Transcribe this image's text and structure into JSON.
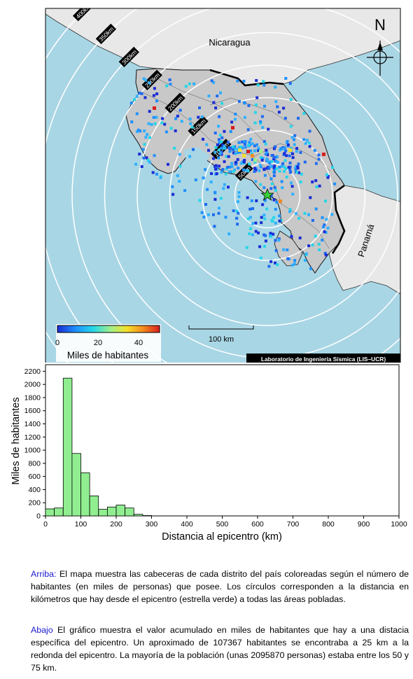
{
  "map": {
    "country_labels": {
      "north": "Nicaragua",
      "south": "Panamá"
    },
    "north_arrow": "N",
    "ring_labels": [
      "50km",
      "100km",
      "150km",
      "200km",
      "250km",
      "300km",
      "350km",
      "400km"
    ],
    "colorbar": {
      "ticks": [
        "0",
        "20",
        "40"
      ],
      "label": "Miles de habitantes",
      "colors": [
        "#1a2cd6",
        "#1e90ff",
        "#25d6e8",
        "#9ff08a",
        "#f4e02a",
        "#f28a1e",
        "#d61e1e"
      ]
    },
    "scale_bar": "100 km",
    "credit": "Laboratorio de Ingeniería Sísmica (LIS–UCR)",
    "colors": {
      "ocean": "#a9d6e5",
      "land_cr": "#c8c8c8",
      "land_other": "#e8e8e8",
      "epicenter": "#39d239"
    }
  },
  "chart_data": {
    "type": "bar",
    "xlabel": "Distancia al epicentro (km)",
    "ylabel": "Miles de habitantes",
    "xlim": [
      0,
      1000
    ],
    "ylim": [
      0,
      2300
    ],
    "xticks": [
      0,
      100,
      200,
      300,
      400,
      500,
      600,
      700,
      800,
      900,
      1000
    ],
    "yticks": [
      0,
      200,
      400,
      600,
      800,
      1000,
      1200,
      1400,
      1600,
      1800,
      2000,
      2200
    ],
    "bin_width": 25,
    "bins_start": [
      0,
      25,
      50,
      75,
      100,
      125,
      150,
      175,
      200,
      225,
      250,
      275
    ],
    "values": [
      107,
      120,
      2096,
      950,
      655,
      305,
      100,
      135,
      165,
      120,
      25,
      5
    ],
    "bar_color": "#90ee90"
  },
  "caption": {
    "top_lead": "Arriba:",
    "top_text": " El mapa muestra las cabeceras de cada distrito del país coloreadas según el número de habitantes (en miles de personas) que posee.  Los círculos corresponden a la distancia en kilómetros que hay desde el epicentro (estrella verde) a todas las áreas pobladas.",
    "bottom_lead": "Abajo",
    "bottom_text": " El gráfico muestra el valor acumulado en miles de habitantes que hay a una distacia específica del epicentro.  Un aproximado de 107367 habitantes se encontraba a 25 km a la redonda del epicentro.  La mayoría de la población (unas 2095870 personas) estaba entre los 50 y 75 km."
  }
}
